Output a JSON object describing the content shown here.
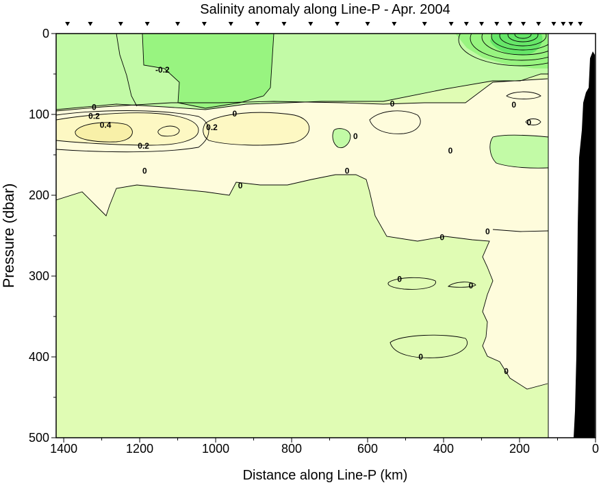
{
  "chart_data": {
    "type": "heatmap",
    "title": "Salinity anomaly along Line-P - Apr. 2004",
    "xlabel": "Distance along Line-P (km)",
    "ylabel": "Pressure (dbar)",
    "xlim": [
      1420,
      0
    ],
    "ylim": [
      500,
      0
    ],
    "x_reversed": true,
    "y_reversed": true,
    "x_ticks": [
      1400,
      1200,
      1000,
      800,
      600,
      400,
      200,
      0
    ],
    "y_ticks": [
      0,
      100,
      200,
      300,
      400,
      500
    ],
    "station_markers_km": [
      1390,
      1330,
      1250,
      1180,
      1100,
      1030,
      960,
      890,
      820,
      750,
      680,
      600,
      530,
      450,
      380,
      340,
      300,
      260,
      225,
      190,
      150,
      110,
      85,
      65,
      40
    ],
    "data_coverage_km": [
      1420,
      125
    ],
    "contour_interval": 0.1,
    "contour_labels": [
      {
        "text": "-0.2",
        "x": 1140,
        "y": 45
      },
      {
        "text": "0",
        "x": 1320,
        "y": 91
      },
      {
        "text": "0.2",
        "x": 1320,
        "y": 102
      },
      {
        "text": "0.4",
        "x": 1290,
        "y": 113
      },
      {
        "text": "0.2",
        "x": 1010,
        "y": 116
      },
      {
        "text": "0.2",
        "x": 1190,
        "y": 139
      },
      {
        "text": "0",
        "x": 950,
        "y": 99
      },
      {
        "text": "0",
        "x": 535,
        "y": 87
      },
      {
        "text": "0",
        "x": 215,
        "y": 88
      },
      {
        "text": "0",
        "x": 632,
        "y": 127
      },
      {
        "text": "0",
        "x": 382,
        "y": 145
      },
      {
        "text": "0",
        "x": 175,
        "y": 110
      },
      {
        "text": "0",
        "x": 1187,
        "y": 170
      },
      {
        "text": "0",
        "x": 935,
        "y": 188
      },
      {
        "text": "0",
        "x": 654,
        "y": 170
      },
      {
        "text": "0",
        "x": 404,
        "y": 252
      },
      {
        "text": "0",
        "x": 284,
        "y": 245
      },
      {
        "text": "0",
        "x": 516,
        "y": 304
      },
      {
        "text": "0",
        "x": 328,
        "y": 312
      },
      {
        "text": "0",
        "x": 460,
        "y": 400
      },
      {
        "text": "0",
        "x": 235,
        "y": 418
      }
    ],
    "colors": {
      "background": "#e0fcb4",
      "slightly_positive": "#fefcdc",
      "positive_0.1": "#fdf8c3",
      "positive_0.3": "#f8f0a8",
      "negative_0.1": "#c2faa6",
      "negative_0.2": "#98f480",
      "negative_strong": "#66e668",
      "bathymetry": "#000000"
    }
  }
}
